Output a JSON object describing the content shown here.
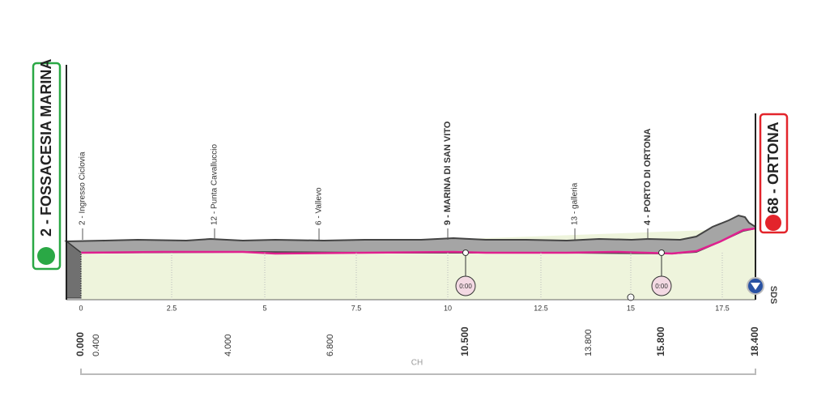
{
  "start": {
    "label": "2 - FOSSACESIA MARINA"
  },
  "finish": {
    "label": "68 - ORTONA"
  },
  "waypoints": [
    "2 - Ingresso Ciclovia",
    "12 - Punta Cavalluccio",
    "6 - Vallevo",
    "9 - MARINA DI SAN VITO",
    "13 - galleria",
    "4 - PORTO DI ORTONA"
  ],
  "km_ticks": [
    "0",
    "2.5",
    "5",
    "7.5",
    "10",
    "12.5",
    "15",
    "17.5"
  ],
  "distances": [
    "0.000",
    "0.400",
    "4.000",
    "6.800",
    "10.500",
    "13.800",
    "15.800",
    "18.400"
  ],
  "timing": [
    "0:00",
    "0:00"
  ],
  "bracket_label": "CH",
  "sds": "SDS"
}
